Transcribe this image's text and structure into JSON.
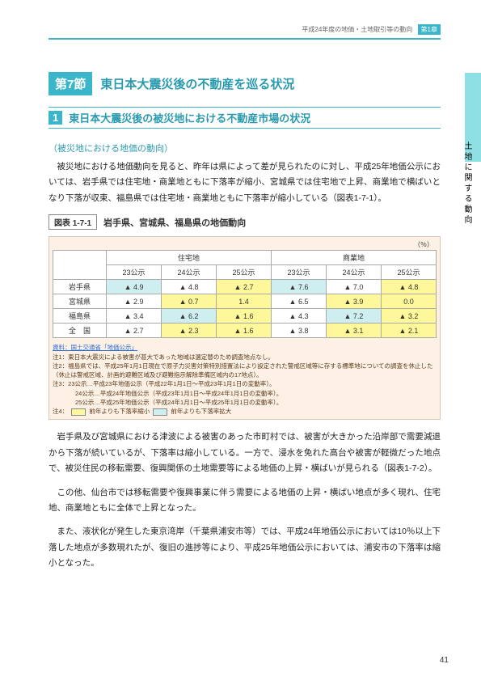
{
  "header": {
    "breadcrumb": "平成24年度の地価・土地取引等の動向",
    "chapter": "第1章"
  },
  "sideLabel": "土地に関する動向",
  "section": {
    "num": "第7節",
    "title": "東日本大震災後の不動産を巡る状況"
  },
  "subsection": {
    "num": "1",
    "title": "東日本大震災後の被災地における不動産市場の状況"
  },
  "paraHead": "（被災地における地価の動向）",
  "body1": "被災地における地価動向を見ると、昨年は県によって差が見られたのに対し、平成25年地価公示においては、岩手県では住宅地・商業地ともに下落率が縮小、宮城県では住宅地で上昇、商業地で横ばいとなり下落が収束、福島県では住宅地・商業地ともに下落率が縮小している（図表1-7-1）。",
  "table": {
    "tag": "図表 1-7-1",
    "caption": "岩手県、宮城県、福島県の地価動向",
    "unit": "（％）",
    "groups": [
      "住宅地",
      "商業地"
    ],
    "subcols": [
      "23公示",
      "24公示",
      "25公示",
      "23公示",
      "24公示",
      "25公示"
    ],
    "rows": [
      {
        "name": "岩手県",
        "cells": [
          {
            "v": "▲ 4.9",
            "c": "hl-blue"
          },
          {
            "v": "▲ 4.8",
            "c": ""
          },
          {
            "v": "▲ 2.7",
            "c": "hl-yellow"
          },
          {
            "v": "▲ 7.6",
            "c": "hl-blue"
          },
          {
            "v": "▲ 7.0",
            "c": ""
          },
          {
            "v": "▲ 4.8",
            "c": "hl-yellow"
          }
        ]
      },
      {
        "name": "宮城県",
        "cells": [
          {
            "v": "▲ 2.9",
            "c": ""
          },
          {
            "v": "▲ 0.7",
            "c": "hl-yellow"
          },
          {
            "v": "1.4",
            "c": "hl-yellow"
          },
          {
            "v": "▲ 6.5",
            "c": ""
          },
          {
            "v": "▲ 3.9",
            "c": "hl-yellow"
          },
          {
            "v": "0.0",
            "c": "hl-yellow"
          }
        ]
      },
      {
        "name": "福島県",
        "cells": [
          {
            "v": "▲ 3.4",
            "c": ""
          },
          {
            "v": "▲ 6.2",
            "c": "hl-blue"
          },
          {
            "v": "▲ 1.6",
            "c": "hl-yellow"
          },
          {
            "v": "▲ 4.3",
            "c": ""
          },
          {
            "v": "▲ 7.2",
            "c": "hl-blue"
          },
          {
            "v": "▲ 3.2",
            "c": "hl-yellow"
          }
        ]
      },
      {
        "name": "全　国",
        "cells": [
          {
            "v": "▲ 2.7",
            "c": ""
          },
          {
            "v": "▲ 2.3",
            "c": "hl-yellow"
          },
          {
            "v": "▲ 1.6",
            "c": "hl-yellow"
          },
          {
            "v": "▲ 3.8",
            "c": ""
          },
          {
            "v": "▲ 3.1",
            "c": "hl-yellow"
          },
          {
            "v": "▲ 2.1",
            "c": "hl-yellow"
          }
        ]
      }
    ],
    "notes": {
      "source": "資料：国土交通省「地価公示」",
      "n1": "注1：東日本大震災による被害が甚大であった地域は選定替のため調査地点なし。",
      "n2": "注2：福島県では、平成25年1月1日現在で原子力災害対策特別措置法により設定された警戒区域等に存する標準地についての調査を休止した（休止は警戒区域、計画的避難区域及び避難指示解除準備区域内の17地点）。",
      "n3a": "注3：23公示…平成23年地価公示（平成22年1月1日～平成23年1月1日の変動率）。",
      "n3b": "24公示…平成24年地価公示（平成23年1月1日～平成24年1月1日の変動率）。",
      "n3c": "25公示…平成25年地価公示（平成24年1月1日～平成25年1月1日の変動率）。",
      "n4pre": "注4：",
      "n4a": "前年よりも下落率縮小",
      "n4b": "前年よりも下落率拡大"
    },
    "colors": {
      "hl-blue": "#cfeef0",
      "hl-yellow": "#fff89a"
    }
  },
  "body2": "岩手県及び宮城県における津波による被害のあった市町村では、被害が大きかった沿岸部で需要減退から下落が続いているが、下落率は縮小している。一方で、浸水を免れた高台や被害が軽微だった地点で、被災住民の移転需要、復興関係の土地需要等による地価の上昇・横ばいが見られる（図表1-7-2）。",
  "body3": "この他、仙台市では移転需要や復興事業に伴う需要による地価の上昇・横ばい地点が多く現れ、住宅地、商業地ともに全体で上昇となった。",
  "body4": "また、液状化が発生した東京湾岸（千葉県浦安市等）では、平成24年地価公示においては10％以上下落した地点が多数現れたが、復旧の進捗等により、平成25年地価公示においては、浦安市の下落率は縮小となった。",
  "pageNum": "41"
}
